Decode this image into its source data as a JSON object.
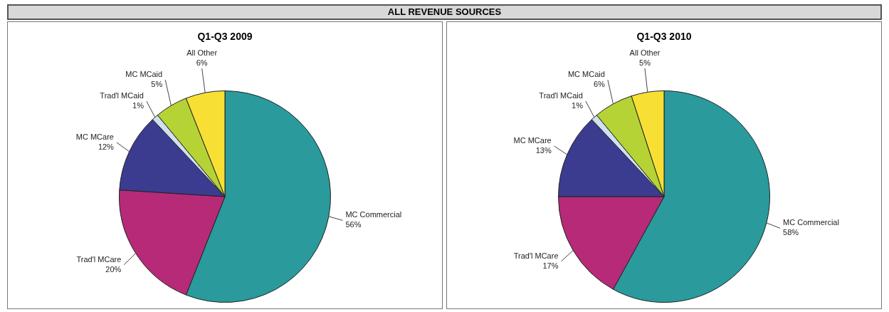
{
  "chart_data": [
    {
      "type": "pie",
      "title": "Q1-Q3 2009",
      "annotations": [
        "ALL REVENUE SOURCES"
      ],
      "categories": [
        "MC Commercial",
        "Trad'l MCare",
        "MC MCare",
        "Trad'l MCaid",
        "MC MCaid",
        "All Other"
      ],
      "values": [
        56,
        20,
        12,
        1,
        5,
        6
      ],
      "value_labels": [
        "56%",
        "20%",
        "12%",
        "1%",
        "5%",
        "6%"
      ],
      "colors": [
        "#2a9a9c",
        "#b62a78",
        "#3b3c90",
        "#cfe0ee",
        "#b6d336",
        "#f7e033"
      ],
      "legend": false
    },
    {
      "type": "pie",
      "title": "Q1-Q3 2010",
      "categories": [
        "MC Commercial",
        "Trad'l MCare",
        "MC MCare",
        "Trad'l MCaid",
        "MC MCaid",
        "All Other"
      ],
      "values": [
        58,
        17,
        13,
        1,
        6,
        5
      ],
      "value_labels": [
        "58%",
        "17%",
        "13%",
        "1%",
        "6%",
        "5%"
      ],
      "colors": [
        "#2a9a9c",
        "#b62a78",
        "#3b3c90",
        "#cfe0ee",
        "#b6d336",
        "#f7e033"
      ],
      "legend": false
    }
  ]
}
